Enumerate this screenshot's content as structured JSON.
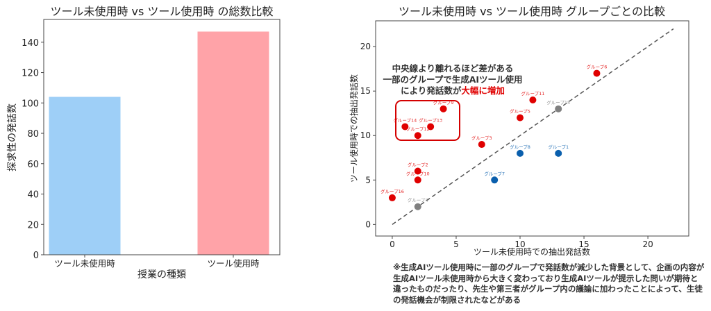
{
  "chart_data": [
    {
      "type": "bar",
      "title": "ツール未使用時 vs ツール使用時 の総数比較",
      "xlabel": "授業の種類",
      "ylabel": "探求性の発話数",
      "categories": [
        "ツール未使用時",
        "ツール使用時"
      ],
      "values": [
        104,
        147
      ],
      "colors": [
        "#9ecff7",
        "#ffa3a8"
      ],
      "ylim": [
        0,
        155
      ],
      "yticks": [
        0,
        20,
        40,
        60,
        80,
        100,
        120,
        140
      ],
      "grid": false
    },
    {
      "type": "scatter",
      "title": "ツール未使用時 vs ツール使用時 グループごとの比較",
      "xlabel": "ツール未使用時での抽出発話数",
      "ylabel": "ツール使用時での抽出発話数",
      "xlim": [
        -1.3,
        23.2
      ],
      "ylim": [
        -1.3,
        22.9
      ],
      "xticks": [
        0,
        5,
        10,
        15,
        20
      ],
      "yticks": [
        0,
        5,
        10,
        15,
        20
      ],
      "reference_line": {
        "from": [
          0,
          0
        ],
        "to": [
          22,
          22
        ],
        "style": "dashed",
        "color": "#555555"
      },
      "colors": {
        "increase": "#e00000",
        "decrease": "#0a5fad",
        "same": "#808080"
      },
      "points": [
        {
          "label": "グループ1",
          "x": 13,
          "y": 8,
          "group": "decrease"
        },
        {
          "label": "グループ2",
          "x": 2,
          "y": 6,
          "group": "increase"
        },
        {
          "label": "グループ3",
          "x": 7,
          "y": 9,
          "group": "increase"
        },
        {
          "label": "グループ4",
          "x": 2,
          "y": 2,
          "group": "same"
        },
        {
          "label": "グループ5",
          "x": 10,
          "y": 12,
          "group": "increase"
        },
        {
          "label": "グループ6",
          "x": 16,
          "y": 17,
          "group": "increase"
        },
        {
          "label": "グループ7",
          "x": 8,
          "y": 5,
          "group": "decrease"
        },
        {
          "label": "グループ8",
          "x": 10,
          "y": 8,
          "group": "decrease"
        },
        {
          "label": "グループ9",
          "x": 4,
          "y": 13,
          "group": "increase"
        },
        {
          "label": "グループ10",
          "x": 2,
          "y": 5,
          "group": "increase"
        },
        {
          "label": "グループ11",
          "x": 11,
          "y": 14,
          "group": "increase"
        },
        {
          "label": "グループ12",
          "x": 2,
          "y": 10,
          "group": "increase"
        },
        {
          "label": "グループ13",
          "x": 3,
          "y": 11,
          "group": "increase"
        },
        {
          "label": "グループ14",
          "x": 1,
          "y": 11,
          "group": "increase"
        },
        {
          "label": "グループ15",
          "x": 13,
          "y": 13,
          "group": "same"
        },
        {
          "label": "グループ16",
          "x": 0,
          "y": 3,
          "group": "increase"
        }
      ],
      "annotation": {
        "line1": "中央線より離れるほど差がある",
        "line2": "一部のグループで生成AIツール使用",
        "line3_prefix": "により発話数が",
        "line3_highlight": "大幅に増加"
      }
    }
  ],
  "note": "※生成AIツール使用時に一部のグループで発話数が減少した背景として、企画の内容が生成AIツール未使用時から大きく変わっており生成AIツールが提示した問いが期待と違ったものだったり、先生や第三者がグループ内の議論に加わったことによって、生徒の発話機会が制限されたなどがある"
}
